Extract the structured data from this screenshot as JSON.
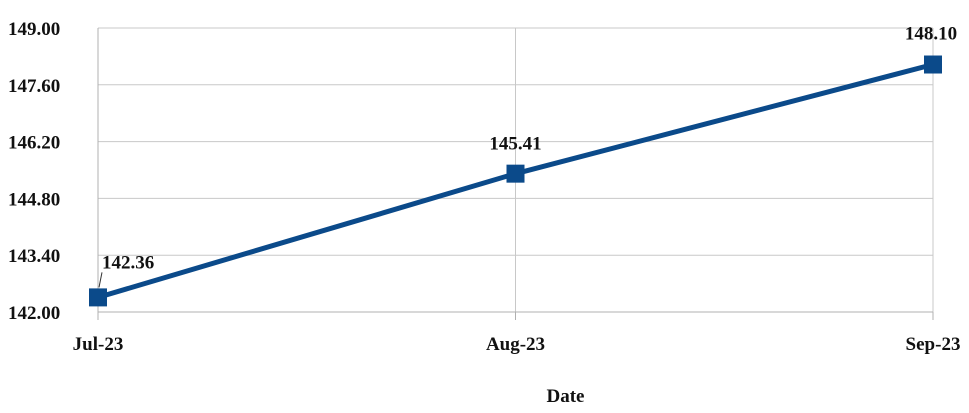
{
  "chart_data": {
    "type": "line",
    "title": "",
    "xlabel": "Date",
    "ylabel": "",
    "categories": [
      "Jul-23",
      "Aug-23",
      "Sep-23"
    ],
    "series": [
      {
        "values": [
          142.36,
          145.41,
          148.1
        ],
        "labels": [
          "142.36",
          "145.41",
          "148.10"
        ]
      }
    ],
    "yticks": [
      "142.00",
      "143.40",
      "144.80",
      "146.20",
      "147.60",
      "149.00"
    ],
    "ylim": [
      142.0,
      149.0
    ],
    "grid": true,
    "legend": "none",
    "series_color": "#0b4a8a"
  }
}
